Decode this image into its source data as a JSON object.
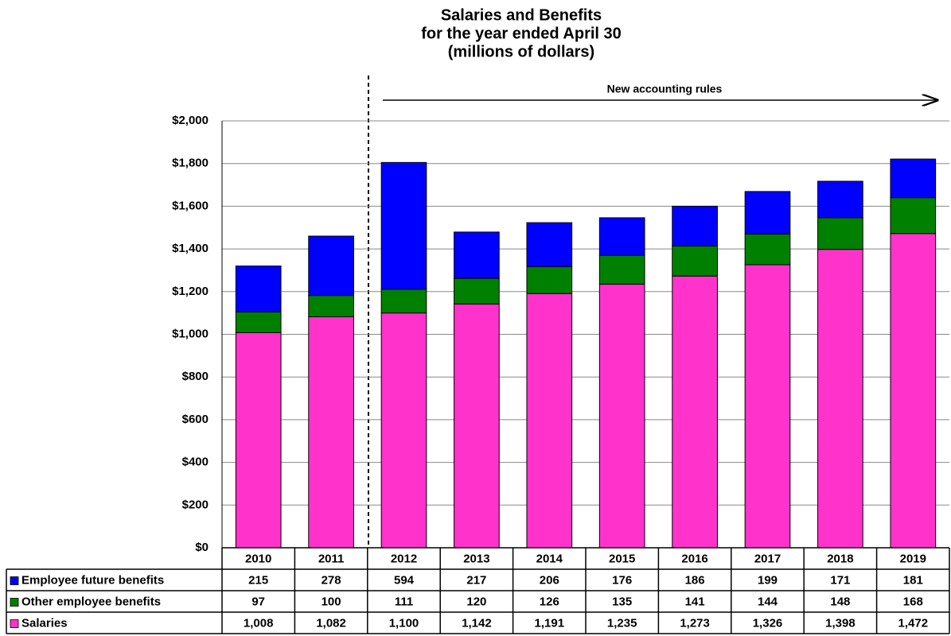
{
  "chart_data": {
    "type": "stacked_bar",
    "title": [
      "Salaries and Benefits",
      "for the year ended April 30",
      "(millions of dollars)"
    ],
    "annotation": "New accounting rules",
    "categories": [
      "2010",
      "2011",
      "2012",
      "2013",
      "2014",
      "2015",
      "2016",
      "2017",
      "2018",
      "2019"
    ],
    "series": [
      {
        "name": "Employee future benefits",
        "color": "#0000ff",
        "values": [
          215,
          278,
          594,
          217,
          206,
          176,
          186,
          199,
          171,
          181
        ],
        "value_labels": [
          "215",
          "278",
          "594",
          "217",
          "206",
          "176",
          "186",
          "199",
          "171",
          "181"
        ]
      },
      {
        "name": "Other employee benefits",
        "color": "#008000",
        "values": [
          97,
          100,
          111,
          120,
          126,
          135,
          141,
          144,
          148,
          168
        ],
        "value_labels": [
          "97",
          "100",
          "111",
          "120",
          "126",
          "135",
          "141",
          "144",
          "148",
          "168"
        ]
      },
      {
        "name": "Salaries",
        "color": "#ff33cc",
        "values": [
          1008,
          1082,
          1100,
          1142,
          1191,
          1235,
          1273,
          1326,
          1398,
          1472
        ],
        "value_labels": [
          "1,008",
          "1,082",
          "1,100",
          "1,142",
          "1,191",
          "1,235",
          "1,273",
          "1,326",
          "1,398",
          "1,472"
        ]
      }
    ],
    "ylim": [
      0,
      2000
    ],
    "yticks": [
      {
        "value": 0,
        "label": "$0"
      },
      {
        "value": 200,
        "label": "$200"
      },
      {
        "value": 400,
        "label": "$400"
      },
      {
        "value": 600,
        "label": "$600"
      },
      {
        "value": 800,
        "label": "$800"
      },
      {
        "value": 1000,
        "label": "$1,000"
      },
      {
        "value": 1200,
        "label": "$1,200"
      },
      {
        "value": 1400,
        "label": "$1,400"
      },
      {
        "value": 1600,
        "label": "$1,600"
      },
      {
        "value": 1800,
        "label": "$1,800"
      },
      {
        "value": 2000,
        "label": "$2,000"
      }
    ],
    "grid": true
  }
}
